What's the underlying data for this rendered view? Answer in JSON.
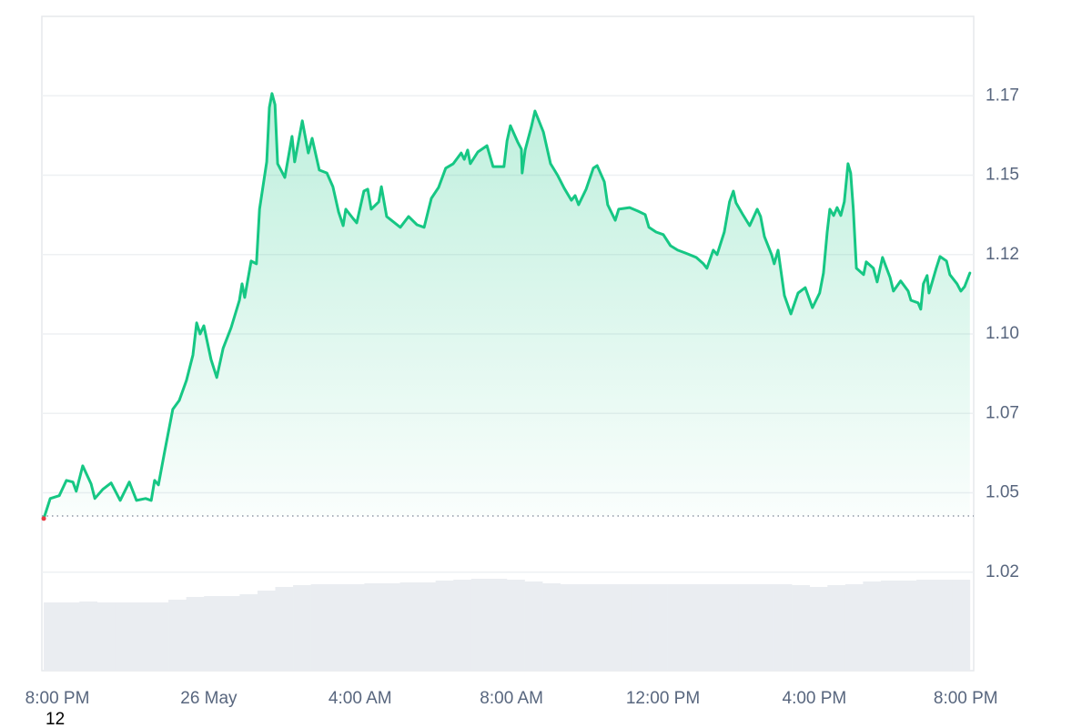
{
  "chart_data": {
    "type": "area",
    "color": "#16c784",
    "start_marker_color": "#ea3943",
    "reference_value": 1.0377,
    "grid": true,
    "footnote": "12",
    "xlim": [
      -0.41,
      24.21
    ],
    "ylim": [
      0.989,
      1.195
    ],
    "xticks": [
      {
        "value": 0,
        "label": "8:00 PM"
      },
      {
        "value": 4,
        "label": "26 May"
      },
      {
        "value": 8,
        "label": "4:00 AM"
      },
      {
        "value": 12,
        "label": "8:00 AM"
      },
      {
        "value": 16,
        "label": "12:00 PM"
      },
      {
        "value": 20,
        "label": "4:00 PM"
      },
      {
        "value": 24,
        "label": "8:00 PM"
      }
    ],
    "yticks": [
      {
        "value": 1.02,
        "label": "1.02"
      },
      {
        "value": 1.045,
        "label": "1.05"
      },
      {
        "value": 1.07,
        "label": "1.07"
      },
      {
        "value": 1.095,
        "label": "1.10"
      },
      {
        "value": 1.12,
        "label": "1.12"
      },
      {
        "value": 1.145,
        "label": "1.15"
      },
      {
        "value": 1.17,
        "label": "1.17"
      }
    ],
    "x": [
      -0.36,
      -0.19,
      0.05,
      0.24,
      0.41,
      0.5,
      0.67,
      0.89,
      0.99,
      1.2,
      1.42,
      1.66,
      1.9,
      2.09,
      2.33,
      2.48,
      2.57,
      2.67,
      2.84,
      3.05,
      3.22,
      3.41,
      3.58,
      3.68,
      3.77,
      3.87,
      4.06,
      4.21,
      4.38,
      4.59,
      4.81,
      4.88,
      4.95,
      5.12,
      5.26,
      5.34,
      5.53,
      5.6,
      5.67,
      5.75,
      5.82,
      6.01,
      6.2,
      6.27,
      6.47,
      6.63,
      6.73,
      6.92,
      7.12,
      7.28,
      7.43,
      7.55,
      7.62,
      7.81,
      7.91,
      8.1,
      8.2,
      8.29,
      8.49,
      8.56,
      8.7,
      9.06,
      9.28,
      9.5,
      9.69,
      9.88,
      10.07,
      10.26,
      10.46,
      10.67,
      10.75,
      10.84,
      10.91,
      11.11,
      11.35,
      11.51,
      11.71,
      11.8,
      11.88,
      11.97,
      12.16,
      12.26,
      12.28,
      12.36,
      12.52,
      12.62,
      12.84,
      13.03,
      13.22,
      13.39,
      13.58,
      13.68,
      13.77,
      13.97,
      14.16,
      14.26,
      14.45,
      14.54,
      14.74,
      14.83,
      15.12,
      15.34,
      15.53,
      15.63,
      15.82,
      16.01,
      16.2,
      16.39,
      16.59,
      16.88,
      17.07,
      17.16,
      17.33,
      17.43,
      17.62,
      17.76,
      17.86,
      17.93,
      18.1,
      18.29,
      18.49,
      18.58,
      18.68,
      18.87,
      18.94,
      19.04,
      19.21,
      19.38,
      19.57,
      19.76,
      19.95,
      20.14,
      20.24,
      20.34,
      20.41,
      20.51,
      20.6,
      20.7,
      20.79,
      20.89,
      20.96,
      21.03,
      21.11,
      21.3,
      21.37,
      21.56,
      21.66,
      21.8,
      22.0,
      22.09,
      22.28,
      22.48,
      22.55,
      22.74,
      22.81,
      22.88,
      22.98,
      23.03,
      23.22,
      23.32,
      23.49,
      23.58,
      23.77,
      23.87,
      23.97,
      24.11
    ],
    "values": [
      1.0369,
      1.0432,
      1.0441,
      1.0489,
      1.0484,
      1.0455,
      1.0535,
      1.0478,
      1.0432,
      1.0461,
      1.0481,
      1.0426,
      1.0484,
      1.0426,
      1.0432,
      1.0426,
      1.0489,
      1.0475,
      1.0584,
      1.0713,
      1.0741,
      1.0804,
      1.0884,
      1.0985,
      1.095,
      1.0976,
      1.087,
      1.0813,
      1.0905,
      1.097,
      1.1056,
      1.1108,
      1.1065,
      1.118,
      1.1171,
      1.1343,
      1.1492,
      1.1663,
      1.1707,
      1.1672,
      1.1486,
      1.1443,
      1.1572,
      1.1492,
      1.1621,
      1.152,
      1.1566,
      1.1466,
      1.1457,
      1.1414,
      1.1334,
      1.1291,
      1.1343,
      1.1314,
      1.13,
      1.14,
      1.1406,
      1.1343,
      1.1366,
      1.1414,
      1.132,
      1.1286,
      1.132,
      1.1294,
      1.1286,
      1.1377,
      1.1411,
      1.1472,
      1.1486,
      1.152,
      1.15,
      1.1529,
      1.1486,
      1.1523,
      1.1543,
      1.1477,
      1.1477,
      1.1477,
      1.1558,
      1.1606,
      1.1555,
      1.1532,
      1.1457,
      1.1529,
      1.1601,
      1.1652,
      1.1586,
      1.1486,
      1.1449,
      1.1409,
      1.1371,
      1.1386,
      1.1357,
      1.1406,
      1.1472,
      1.148,
      1.1429,
      1.1357,
      1.1308,
      1.1343,
      1.1348,
      1.1337,
      1.1326,
      1.1286,
      1.1271,
      1.1263,
      1.1228,
      1.1214,
      1.1205,
      1.1191,
      1.1171,
      1.1157,
      1.1214,
      1.12,
      1.1271,
      1.1366,
      1.14,
      1.1363,
      1.1328,
      1.1291,
      1.1343,
      1.132,
      1.1257,
      1.12,
      1.1171,
      1.1214,
      1.1071,
      1.1013,
      1.1079,
      1.1096,
      1.1033,
      1.1079,
      1.1142,
      1.1271,
      1.1343,
      1.1323,
      1.1348,
      1.1323,
      1.1366,
      1.1486,
      1.1457,
      1.1343,
      1.1157,
      1.1137,
      1.1177,
      1.1157,
      1.1114,
      1.1191,
      1.1128,
      1.1085,
      1.1117,
      1.1085,
      1.1056,
      1.1048,
      1.1028,
      1.1108,
      1.1134,
      1.1079,
      1.1157,
      1.1194,
      1.118,
      1.1137,
      1.1108,
      1.1085,
      1.1099,
      1.1142
    ],
    "volume": {
      "color": "#eaedf1",
      "values": [
        75,
        75,
        76,
        75,
        75,
        75,
        75,
        78,
        81,
        82,
        82,
        84,
        88,
        92,
        94,
        95,
        95,
        95,
        96,
        96,
        97,
        97,
        99,
        100,
        101,
        101,
        100,
        98,
        96,
        95,
        95,
        95,
        95,
        95,
        95,
        95,
        95,
        95,
        95,
        95,
        95,
        95,
        94,
        92,
        94,
        95,
        98,
        99,
        99,
        100,
        100,
        100
      ]
    }
  }
}
